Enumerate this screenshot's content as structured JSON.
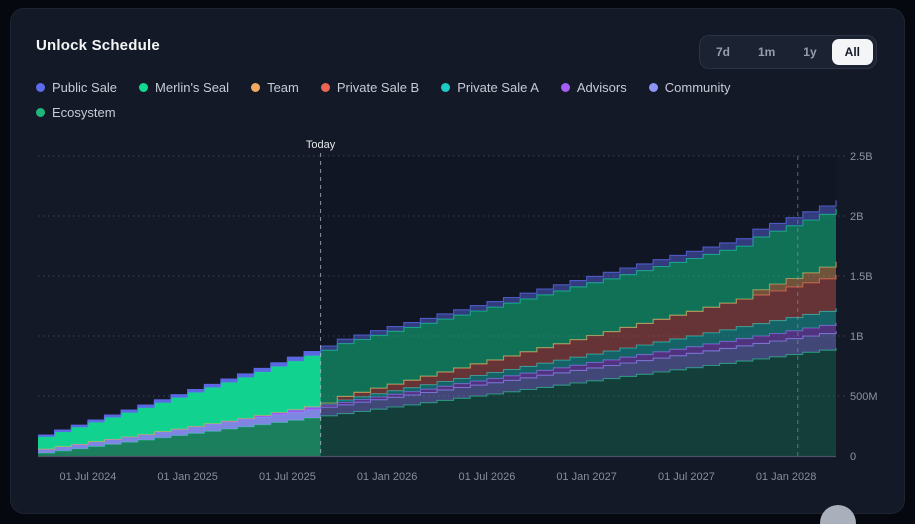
{
  "card": {
    "title": "Unlock Schedule"
  },
  "range_selector": {
    "options": [
      "7d",
      "1m",
      "1y",
      "All"
    ],
    "active": "All"
  },
  "legend": {
    "items": [
      {
        "label": "Public Sale",
        "color": "#5e6beb"
      },
      {
        "label": "Merlin's Seal",
        "color": "#12d892"
      },
      {
        "label": "Team",
        "color": "#f3a862"
      },
      {
        "label": "Private Sale B",
        "color": "#ea6554"
      },
      {
        "label": "Private Sale A",
        "color": "#1ecac4"
      },
      {
        "label": "Advisors",
        "color": "#a55df5"
      },
      {
        "label": "Community",
        "color": "#8b94f8"
      },
      {
        "label": "Ecosystem",
        "color": "#1fb87c"
      }
    ]
  },
  "chart_data": {
    "type": "area",
    "stacked": true,
    "step": true,
    "title": "Unlock Schedule",
    "values_unit": "millions of tokens",
    "n_points": 49,
    "x_start": "Apr 2024",
    "x_end": "Apr 2028",
    "x_tick_labels": [
      "01 Jul 2024",
      "01 Jan 2025",
      "01 Jul 2025",
      "01 Jan 2026",
      "01 Jul 2026",
      "01 Jan 2027",
      "01 Jul 2027",
      "01 Jan 2028"
    ],
    "x_tick_positions": [
      3,
      9,
      15,
      21,
      27,
      33,
      39,
      45
    ],
    "y_max": 2500,
    "y_ticks": [
      {
        "v": 0,
        "label": "0"
      },
      {
        "v": 500,
        "label": "500M"
      },
      {
        "v": 1000,
        "label": "1B"
      },
      {
        "v": 1500,
        "label": "1.5B"
      },
      {
        "v": 2000,
        "label": "2B"
      },
      {
        "v": 2500,
        "label": "2.5B"
      }
    ],
    "today_index": 17,
    "today_label": "Today",
    "marker_index": 45.7,
    "grid": "dotted-horizontal",
    "legend_position": "top",
    "series_bottom_to_top": [
      {
        "name": "Ecosystem",
        "color": "#1fb87c",
        "fill_opacity": 0.5,
        "values": [
          25,
          43,
          61,
          80,
          98,
          116,
          134,
          153,
          171,
          189,
          207,
          226,
          244,
          262,
          280,
          298,
          317,
          335,
          353,
          371,
          390,
          408,
          426,
          444,
          463,
          481,
          499,
          517,
          535,
          554,
          572,
          590,
          608,
          627,
          645,
          663,
          681,
          700,
          718,
          736,
          754,
          772,
          791,
          809,
          827,
          845,
          864,
          882,
          900
        ]
      },
      {
        "name": "Community",
        "color": "#8b94f8",
        "fill_opacity": 0.8,
        "values": [
          35,
          37,
          39,
          42,
          44,
          46,
          48,
          50,
          53,
          55,
          57,
          59,
          61,
          63,
          66,
          68,
          70,
          72,
          74,
          77,
          79,
          81,
          83,
          85,
          88,
          90,
          92,
          94,
          96,
          98,
          101,
          103,
          105,
          107,
          109,
          112,
          114,
          116,
          118,
          120,
          123,
          125,
          127,
          129,
          131,
          133,
          136,
          138,
          140
        ]
      },
      {
        "name": "Advisors",
        "color": "#a55df5",
        "fill_opacity": 0.85,
        "values": [
          0,
          0,
          0,
          0,
          0,
          0,
          0,
          2,
          3,
          5,
          7,
          8,
          10,
          12,
          13,
          15,
          17,
          18,
          20,
          22,
          23,
          25,
          27,
          28,
          30,
          32,
          33,
          35,
          37,
          38,
          40,
          42,
          43,
          45,
          47,
          48,
          50,
          52,
          53,
          55,
          57,
          58,
          60,
          62,
          63,
          65,
          67,
          68,
          70
        ]
      },
      {
        "name": "Private Sale A",
        "color": "#1ecac4",
        "fill_opacity": 0.85,
        "values": [
          0,
          0,
          0,
          0,
          0,
          0,
          0,
          0,
          0,
          0,
          0,
          0,
          0,
          3,
          7,
          10,
          13,
          17,
          20,
          23,
          27,
          30,
          33,
          37,
          40,
          43,
          47,
          50,
          53,
          57,
          60,
          63,
          67,
          70,
          73,
          77,
          80,
          83,
          87,
          90,
          93,
          97,
          100,
          103,
          107,
          110,
          113,
          117,
          120
        ]
      },
      {
        "name": "Private Sale B",
        "color": "#ea6554",
        "fill_opacity": 0.8,
        "values": [
          0,
          0,
          0,
          0,
          0,
          0,
          0,
          0,
          0,
          0,
          0,
          0,
          0,
          0,
          0,
          0,
          0,
          0,
          30,
          38,
          47,
          55,
          63,
          72,
          80,
          88,
          97,
          105,
          113,
          122,
          130,
          138,
          147,
          155,
          163,
          172,
          180,
          188,
          197,
          205,
          213,
          222,
          230,
          238,
          247,
          255,
          263,
          272,
          280
        ]
      },
      {
        "name": "Team",
        "color": "#f3a862",
        "fill_opacity": 0.85,
        "values": [
          0,
          0,
          0,
          0,
          0,
          0,
          0,
          0,
          0,
          0,
          0,
          0,
          0,
          0,
          0,
          0,
          0,
          0,
          0,
          0,
          0,
          0,
          0,
          0,
          0,
          0,
          0,
          0,
          0,
          0,
          0,
          0,
          0,
          0,
          0,
          0,
          0,
          0,
          0,
          0,
          0,
          0,
          0,
          45,
          58,
          71,
          84,
          97,
          110
        ]
      },
      {
        "name": "Merlin's Seal",
        "color": "#12d892",
        "fill_opacity": 0.93,
        "values": [
          100,
          120,
          140,
          160,
          180,
          200,
          220,
          240,
          260,
          280,
          300,
          320,
          340,
          360,
          380,
          400,
          420,
          440,
          440,
          440,
          440,
          440,
          440,
          440,
          440,
          440,
          440,
          440,
          440,
          440,
          440,
          440,
          440,
          440,
          440,
          440,
          440,
          440,
          440,
          440,
          440,
          440,
          440,
          440,
          440,
          440,
          440,
          440,
          440
        ]
      },
      {
        "name": "Public Sale",
        "color": "#5e6beb",
        "fill_opacity": 0.9,
        "values": [
          15,
          16,
          17,
          18,
          20,
          21,
          22,
          23,
          24,
          25,
          26,
          28,
          29,
          30,
          31,
          32,
          33,
          35,
          36,
          37,
          38,
          39,
          40,
          41,
          43,
          44,
          45,
          46,
          47,
          48,
          49,
          51,
          52,
          53,
          54,
          55,
          56,
          57,
          59,
          60,
          61,
          62,
          63,
          64,
          65,
          67,
          68,
          69,
          70
        ]
      }
    ]
  }
}
